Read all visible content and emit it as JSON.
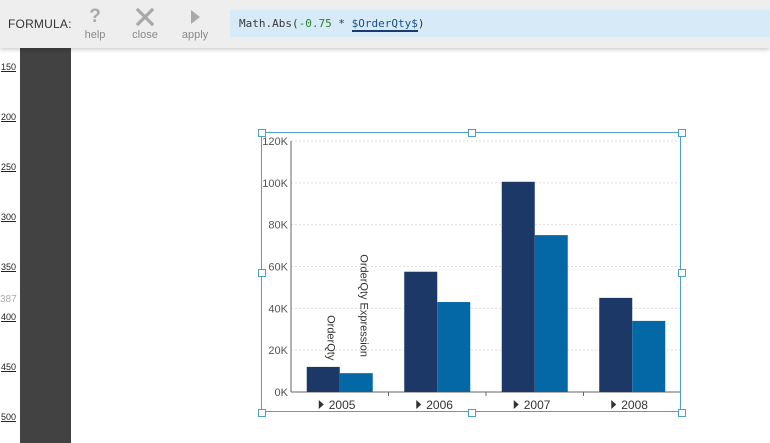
{
  "toolbar": {
    "formula_label": "FORMULA:",
    "buttons": [
      {
        "id": "help",
        "label": "help",
        "icon": "question-icon"
      },
      {
        "id": "close",
        "label": "close",
        "icon": "close-icon"
      },
      {
        "id": "apply",
        "label": "apply",
        "icon": "play-icon"
      }
    ],
    "formula": {
      "prefix": "Math.Abs(",
      "number": "-0.75",
      "operator": " * ",
      "field": "$OrderQty$",
      "suffix": ")"
    }
  },
  "ruler": {
    "ticks": [
      "150",
      "200",
      "250",
      "300",
      "350",
      "400",
      "450",
      "500"
    ],
    "marker": "387"
  },
  "colors": {
    "series1": "#1b3866",
    "series2": "#0568a6",
    "frame": "#4f9fc6",
    "gutter": "#424242"
  },
  "chart_data": {
    "type": "bar",
    "categories": [
      "2005",
      "2006",
      "2007",
      "2008"
    ],
    "series": [
      {
        "name": "OrderQty",
        "values": [
          12000,
          57500,
          100500,
          45000
        ]
      },
      {
        "name": "OrderQty Expression",
        "values": [
          9000,
          43000,
          75000,
          34000
        ]
      }
    ],
    "yticks": [
      "0K",
      "20K",
      "40K",
      "60K",
      "80K",
      "100K",
      "120K"
    ],
    "ylim": [
      0,
      120000
    ],
    "grid": true,
    "legend": "none"
  }
}
